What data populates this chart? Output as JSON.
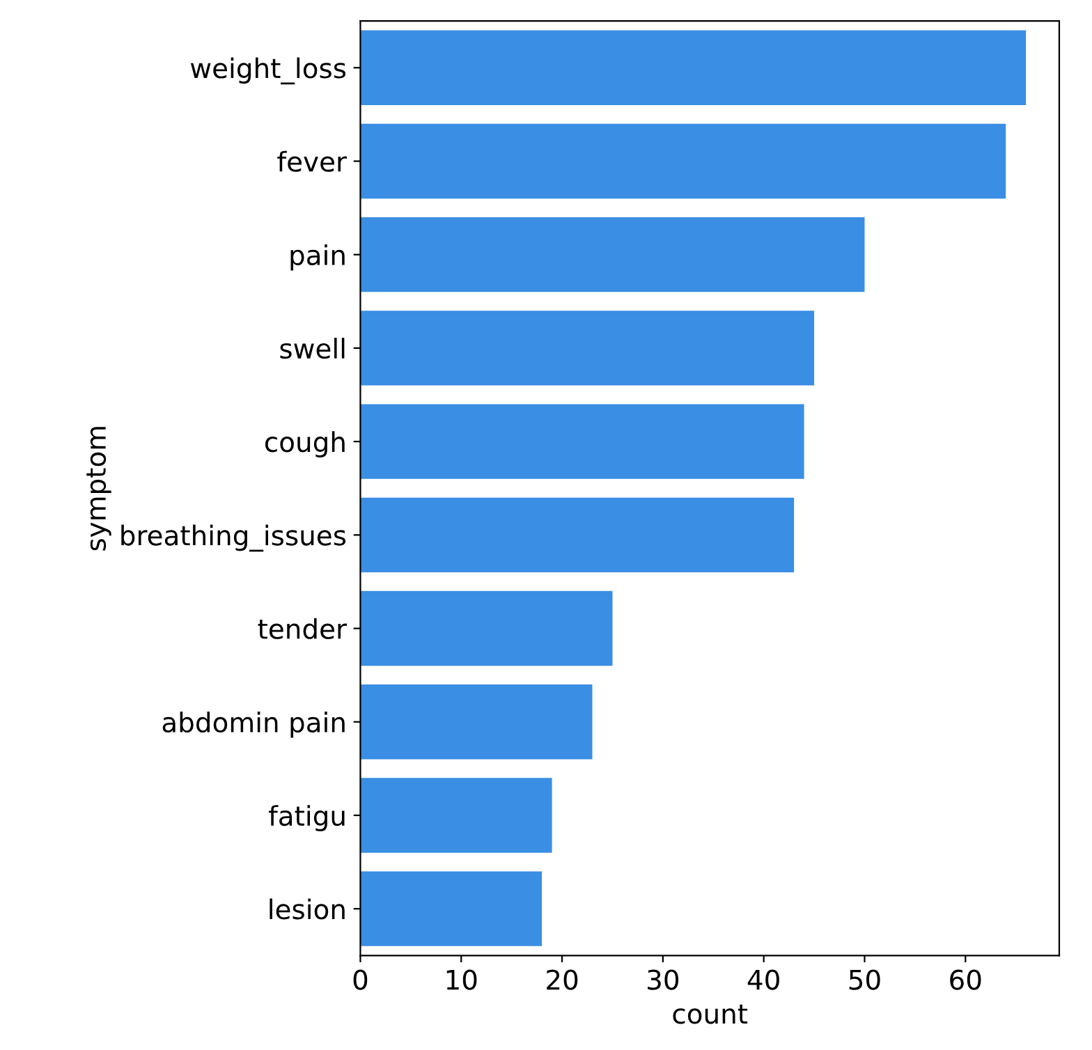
{
  "chart_data": {
    "type": "bar",
    "orientation": "horizontal",
    "xlabel": "count",
    "ylabel": "symptom",
    "categories": [
      "weight_loss",
      "fever",
      "pain",
      "swell",
      "cough",
      "breathing_issues",
      "tender",
      "abdomin pain",
      "fatigu",
      "lesion"
    ],
    "values": [
      66,
      64,
      50,
      45,
      44,
      43,
      25,
      23,
      19,
      18
    ],
    "color": "#3a8ee3",
    "xlim": [
      0,
      69.3
    ],
    "xticks": [
      0,
      10,
      20,
      30,
      40,
      50,
      60
    ],
    "grid": false
  }
}
